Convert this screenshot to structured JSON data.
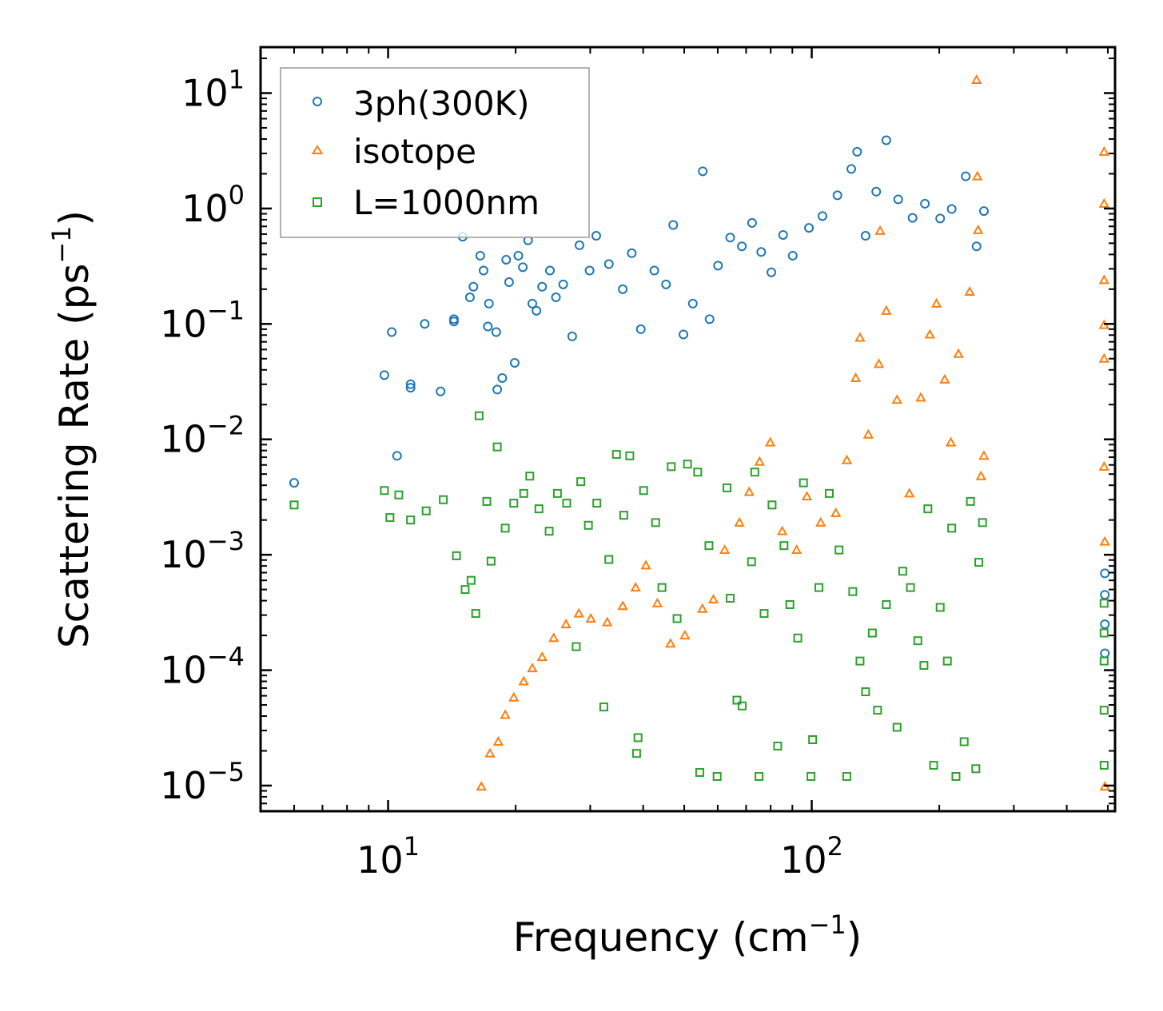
{
  "chart_data": {
    "type": "scatter",
    "title": "",
    "xlabel": {
      "base": "Frequency (cm",
      "sup": "−1",
      "tail": ")"
    },
    "ylabel": {
      "base": "Scattering Rate (ps",
      "sup": "−1",
      "tail": ")"
    },
    "xscale": "log",
    "yscale": "log",
    "xlim": [
      5,
      520
    ],
    "ylim": [
      6e-06,
      25
    ],
    "x_ticks": [
      {
        "value": 10,
        "base": "10",
        "exp": "1"
      },
      {
        "value": 100,
        "base": "10",
        "exp": "2"
      }
    ],
    "y_ticks": [
      {
        "value": 10,
        "base": "10",
        "exp": "1"
      },
      {
        "value": 1,
        "base": "10",
        "exp": "0"
      },
      {
        "value": 0.1,
        "base": "10",
        "exp": "−1"
      },
      {
        "value": 0.01,
        "base": "10",
        "exp": "−2"
      },
      {
        "value": 0.001,
        "base": "10",
        "exp": "−3"
      },
      {
        "value": 0.0001,
        "base": "10",
        "exp": "−4"
      },
      {
        "value": 1e-05,
        "base": "10",
        "exp": "−5"
      }
    ],
    "legend_position": "top-left",
    "series": [
      {
        "name": "3ph(300K)",
        "marker": "circle",
        "color": "#1f77b4",
        "points": [
          [
            6,
            0.0042
          ],
          [
            10.2,
            0.085
          ],
          [
            10.5,
            0.0072
          ],
          [
            9.8,
            0.036
          ],
          [
            11.3,
            0.03
          ],
          [
            11.3,
            0.028
          ],
          [
            12.2,
            0.1
          ],
          [
            13.3,
            0.026
          ],
          [
            14.3,
            0.11
          ],
          [
            14.3,
            0.105
          ],
          [
            15,
            0.57
          ],
          [
            15.6,
            0.17
          ],
          [
            15.9,
            0.21
          ],
          [
            16.5,
            0.39
          ],
          [
            16.8,
            0.29
          ],
          [
            17.2,
            0.095
          ],
          [
            17.3,
            0.15
          ],
          [
            18,
            0.085
          ],
          [
            18.1,
            0.027
          ],
          [
            18.6,
            0.034
          ],
          [
            19,
            0.36
          ],
          [
            19.3,
            0.23
          ],
          [
            19.9,
            0.046
          ],
          [
            20.3,
            0.39
          ],
          [
            20.8,
            0.31
          ],
          [
            21.4,
            0.53
          ],
          [
            21.9,
            0.15
          ],
          [
            22.4,
            0.13
          ],
          [
            23.1,
            0.21
          ],
          [
            24.1,
            0.29
          ],
          [
            24.9,
            0.17
          ],
          [
            25.9,
            0.22
          ],
          [
            27.2,
            0.078
          ],
          [
            28.3,
            0.48
          ],
          [
            29.9,
            0.29
          ],
          [
            31,
            0.58
          ],
          [
            33.2,
            0.33
          ],
          [
            35.8,
            0.2
          ],
          [
            37.6,
            0.41
          ],
          [
            39.5,
            0.09
          ],
          [
            42.5,
            0.29
          ],
          [
            45.3,
            0.22
          ],
          [
            47.1,
            0.72
          ],
          [
            49.8,
            0.081
          ],
          [
            52.4,
            0.15
          ],
          [
            55.3,
            2.1
          ],
          [
            57.4,
            0.11
          ],
          [
            60.1,
            0.32
          ],
          [
            64.2,
            0.56
          ],
          [
            68.4,
            0.47
          ],
          [
            72.3,
            0.75
          ],
          [
            76,
            0.42
          ],
          [
            80.3,
            0.28
          ],
          [
            85.6,
            0.59
          ],
          [
            90.2,
            0.39
          ],
          [
            98.5,
            0.68
          ],
          [
            106,
            0.86
          ],
          [
            115,
            1.3
          ],
          [
            124,
            2.2
          ],
          [
            128,
            3.1
          ],
          [
            134,
            0.58
          ],
          [
            142,
            1.4
          ],
          [
            150,
            3.9
          ],
          [
            160,
            1.2
          ],
          [
            173,
            0.83
          ],
          [
            185,
            1.1
          ],
          [
            201,
            0.82
          ],
          [
            214,
            0.99
          ],
          [
            231,
            1.9
          ],
          [
            245,
            0.47
          ],
          [
            255,
            0.95
          ],
          [
            492,
            0.00069
          ],
          [
            492,
            0.00045
          ],
          [
            492,
            0.00025
          ],
          [
            492,
            0.00014
          ]
        ]
      },
      {
        "name": "isotope",
        "marker": "triangle",
        "color": "#ff7f0e",
        "points": [
          [
            16.6,
            9.8e-06
          ],
          [
            17.4,
            1.9e-05
          ],
          [
            18.2,
            2.4e-05
          ],
          [
            18.9,
            4.1e-05
          ],
          [
            19.8,
            5.8e-05
          ],
          [
            20.9,
            8e-05
          ],
          [
            21.9,
            0.000104
          ],
          [
            23.1,
            0.00013
          ],
          [
            24.6,
            0.00019
          ],
          [
            26.3,
            0.00025
          ],
          [
            28.2,
            0.00031
          ],
          [
            30.1,
            0.00028
          ],
          [
            32.9,
            0.00026
          ],
          [
            35.8,
            0.00036
          ],
          [
            38.4,
            0.00052
          ],
          [
            40.6,
            0.00081
          ],
          [
            43.2,
            0.00038
          ],
          [
            46.4,
            0.00017
          ],
          [
            50.2,
            0.0002
          ],
          [
            55.2,
            0.00034
          ],
          [
            58.6,
            0.00041
          ],
          [
            62.3,
            0.0011
          ],
          [
            67.5,
            0.0019
          ],
          [
            71.2,
            0.0035
          ],
          [
            75.3,
            0.0064
          ],
          [
            79.8,
            0.0094
          ],
          [
            85.2,
            0.0016
          ],
          [
            92.1,
            0.0011
          ],
          [
            97.4,
            0.0032
          ],
          [
            105,
            0.0019
          ],
          [
            114,
            0.0023
          ],
          [
            121,
            0.0066
          ],
          [
            127,
            0.034
          ],
          [
            130,
            0.076
          ],
          [
            136,
            0.011
          ],
          [
            144,
            0.045
          ],
          [
            150,
            0.13
          ],
          [
            159,
            0.022
          ],
          [
            170,
            0.0034
          ],
          [
            181,
            0.023
          ],
          [
            190,
            0.081
          ],
          [
            197,
            0.15
          ],
          [
            206,
            0.033
          ],
          [
            213,
            0.0094
          ],
          [
            222,
            0.055
          ],
          [
            236,
            0.19
          ],
          [
            245,
            13
          ],
          [
            246,
            1.9
          ],
          [
            247,
            0.65
          ],
          [
            251,
            0.0048
          ],
          [
            255,
            0.0072
          ],
          [
            145,
            0.64
          ],
          [
            490,
            3.1
          ],
          [
            490,
            1.1
          ],
          [
            490,
            0.24
          ],
          [
            490,
            0.098
          ],
          [
            490,
            0.05
          ],
          [
            490,
            0.0058
          ],
          [
            492,
            0.0013
          ],
          [
            492,
            9.8e-06
          ]
        ]
      },
      {
        "name": "L=1000nm",
        "marker": "square",
        "color": "#2ca02c",
        "points": [
          [
            6,
            0.0027
          ],
          [
            9.8,
            0.0036
          ],
          [
            10.1,
            0.0021
          ],
          [
            10.6,
            0.0033
          ],
          [
            11.3,
            0.002
          ],
          [
            12.3,
            0.0024
          ],
          [
            13.5,
            0.003
          ],
          [
            14.5,
            0.00098
          ],
          [
            15.2,
            0.0005
          ],
          [
            15.7,
            0.0006
          ],
          [
            16.1,
            0.00031
          ],
          [
            16.4,
            0.016
          ],
          [
            17.1,
            0.0029
          ],
          [
            17.5,
            0.00088
          ],
          [
            18.1,
            0.0086
          ],
          [
            18.9,
            0.0017
          ],
          [
            19.8,
            0.0028
          ],
          [
            20.9,
            0.0034
          ],
          [
            21.6,
            0.0048
          ],
          [
            22.7,
            0.0025
          ],
          [
            24,
            0.0016
          ],
          [
            25.1,
            0.0034
          ],
          [
            26.4,
            0.0028
          ],
          [
            27.8,
            0.00016
          ],
          [
            28.5,
            0.0043
          ],
          [
            29.7,
            0.0018
          ],
          [
            31.1,
            0.0028
          ],
          [
            32.3,
            4.8e-05
          ],
          [
            33.2,
            0.00091
          ],
          [
            34.6,
            0.0074
          ],
          [
            36,
            0.0022
          ],
          [
            37.2,
            0.0072
          ],
          [
            38.6,
            1.9e-05
          ],
          [
            38.9,
            2.6e-05
          ],
          [
            40.1,
            0.0036
          ],
          [
            42.8,
            0.0019
          ],
          [
            44.3,
            0.00052
          ],
          [
            46.6,
            0.0058
          ],
          [
            48.1,
            0.00028
          ],
          [
            50.9,
            0.0061
          ],
          [
            53.8,
            0.0052
          ],
          [
            54.4,
            1.3e-05
          ],
          [
            57.2,
            0.0012
          ],
          [
            59.8,
            1.2e-05
          ],
          [
            63.1,
            0.0038
          ],
          [
            64.2,
            0.00042
          ],
          [
            66.6,
            5.5e-05
          ],
          [
            68.5,
            4.9e-05
          ],
          [
            72.1,
            0.00087
          ],
          [
            73.4,
            0.0052
          ],
          [
            75.1,
            1.2e-05
          ],
          [
            77.2,
            0.00031
          ],
          [
            80.6,
            0.0027
          ],
          [
            83.1,
            2.2e-05
          ],
          [
            86,
            0.0012
          ],
          [
            88.8,
            0.00037
          ],
          [
            92.7,
            0.00019
          ],
          [
            95.6,
            0.0042
          ],
          [
            99.6,
            1.2e-05
          ],
          [
            100.5,
            2.5e-05
          ],
          [
            104,
            0.00052
          ],
          [
            110,
            0.0034
          ],
          [
            116,
            0.0011
          ],
          [
            121,
            1.2e-05
          ],
          [
            125,
            0.00048
          ],
          [
            130,
            0.00012
          ],
          [
            134,
            6.5e-05
          ],
          [
            139,
            0.00021
          ],
          [
            143,
            4.5e-05
          ],
          [
            150,
            0.00037
          ],
          [
            159,
            3.2e-05
          ],
          [
            164,
            0.00072
          ],
          [
            171,
            0.00052
          ],
          [
            178,
            0.00018
          ],
          [
            184,
            0.00011
          ],
          [
            188,
            0.0025
          ],
          [
            194,
            1.5e-05
          ],
          [
            201,
            0.00035
          ],
          [
            209,
            0.00012
          ],
          [
            214,
            0.0017
          ],
          [
            219,
            1.2e-05
          ],
          [
            229,
            2.4e-05
          ],
          [
            237,
            0.0029
          ],
          [
            244,
            1.4e-05
          ],
          [
            248,
            0.00086
          ],
          [
            253,
            0.0019
          ],
          [
            490,
            0.00038
          ],
          [
            490,
            0.00021
          ],
          [
            490,
            0.00012
          ],
          [
            490,
            4.5e-05
          ],
          [
            490,
            1.5e-05
          ]
        ]
      }
    ]
  }
}
